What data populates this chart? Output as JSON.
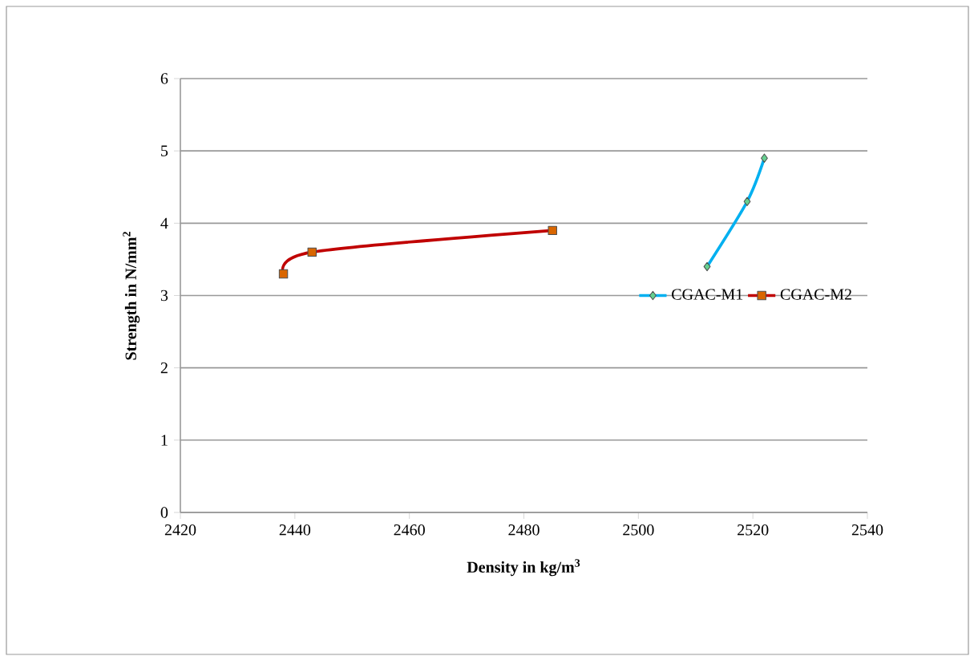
{
  "chart_data": {
    "type": "line",
    "xlabel": "Density in kg/m$^{3}$",
    "ylabel": "Strength in N/mm$^{2}$",
    "xlim": [
      2420,
      2540
    ],
    "xticks": [
      2420,
      2440,
      2460,
      2480,
      2500,
      2520,
      2540
    ],
    "ylim": [
      0,
      6
    ],
    "yticks": [
      0,
      1,
      2,
      3,
      4,
      5,
      6
    ],
    "grid": "y",
    "legend": "right",
    "series": [
      {
        "name": "CGAC-M1",
        "color": "#00b0f0",
        "marker": "diamond",
        "x": [
          2512,
          2519,
          2522
        ],
        "values": [
          3.4,
          4.3,
          4.9
        ]
      },
      {
        "name": "CGAC-M2",
        "color": "#c00000",
        "marker": "square",
        "x": [
          2438,
          2443,
          2485
        ],
        "values": [
          3.3,
          3.6,
          3.9
        ]
      }
    ]
  }
}
